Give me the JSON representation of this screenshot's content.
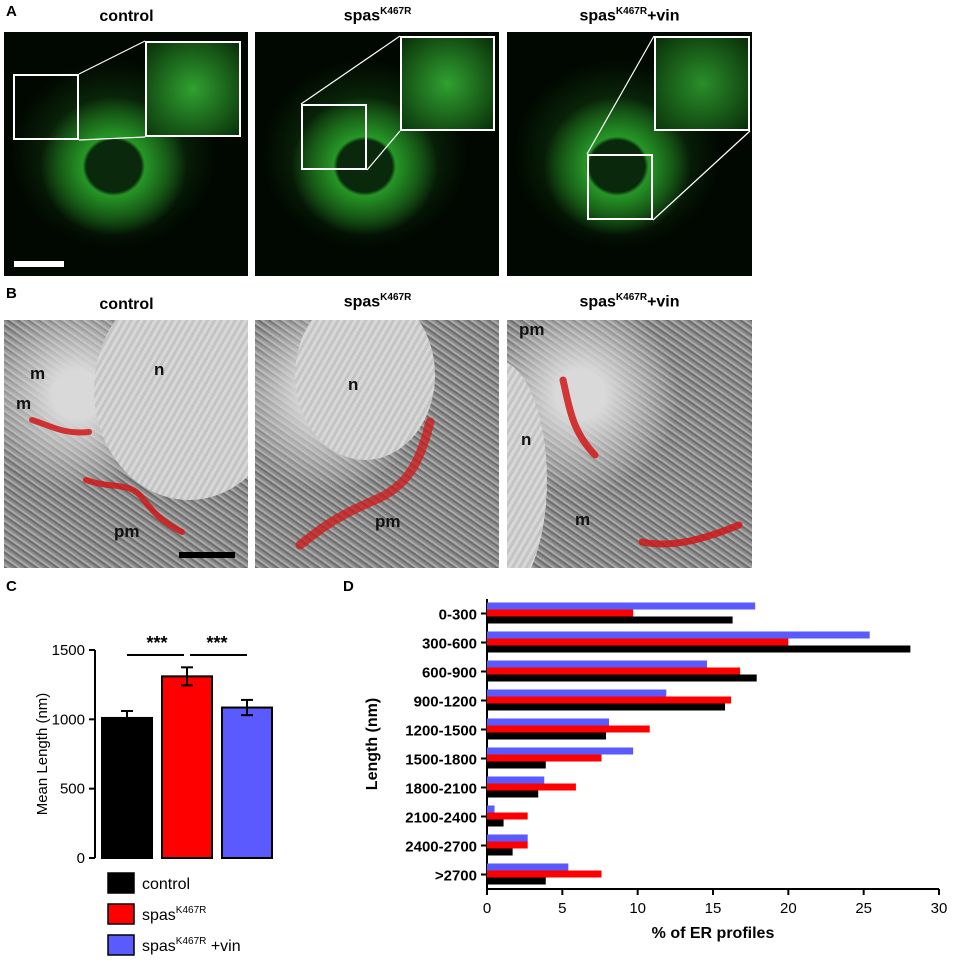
{
  "panels": {
    "A": {
      "label": "A",
      "titles": [
        "control",
        "spas",
        "spas"
      ],
      "sup": [
        "",
        "K467R",
        "K467R"
      ],
      "suffix": [
        "",
        "",
        "+vin"
      ]
    },
    "B": {
      "label": "B",
      "titles": [
        "control",
        "spas",
        "spas"
      ],
      "sup": [
        "",
        "K467R",
        "K467R"
      ],
      "suffix": [
        "",
        "",
        "+vin"
      ],
      "em_labels": {
        "control": [
          "m",
          "m",
          "n",
          "pm"
        ],
        "spas": [
          "n",
          "pm"
        ],
        "spasvin": [
          "pm",
          "n",
          "m"
        ]
      }
    },
    "C": {
      "label": "C"
    },
    "D": {
      "label": "D"
    }
  },
  "colors": {
    "control": "#000000",
    "spas": "#ff0000",
    "spasvin": "#5a5aff",
    "er_trace": "#d01818"
  },
  "chart_data": [
    {
      "type": "bar",
      "panel": "C",
      "categories": [
        "control",
        "spasK467R",
        "spasK467R +vin"
      ],
      "values": [
        1010,
        1310,
        1085
      ],
      "errors": [
        50,
        65,
        55
      ],
      "ylabel": "Mean Length (nm)",
      "ylim": [
        0,
        1500
      ],
      "yticks": [
        "0",
        "500",
        "1000",
        "1500"
      ],
      "significance": [
        "***",
        "***"
      ],
      "legend": [
        {
          "name": "control",
          "sup": ""
        },
        {
          "name": "spas",
          "sup": "K467R"
        },
        {
          "name": "spas",
          "sup": "K467R",
          "suffix": " +vin"
        }
      ]
    },
    {
      "type": "bar",
      "orientation": "horizontal",
      "panel": "D",
      "categories": [
        "0-300",
        "300-600",
        "600-900",
        "900-1200",
        "1200-1500",
        "1500-1800",
        "1800-2100",
        "2100-2400",
        "2400-2700",
        ">2700"
      ],
      "series": [
        {
          "key": "spasvin",
          "values": [
            17.8,
            25.4,
            14.6,
            11.9,
            8.1,
            9.7,
            3.8,
            0.5,
            2.7,
            5.4
          ]
        },
        {
          "key": "spas",
          "values": [
            9.7,
            20.0,
            16.8,
            16.2,
            10.8,
            7.6,
            5.9,
            2.7,
            2.7,
            7.6
          ]
        },
        {
          "key": "control",
          "values": [
            16.3,
            28.1,
            17.9,
            15.8,
            7.9,
            3.9,
            3.4,
            1.1,
            1.7,
            3.9
          ]
        }
      ],
      "xlabel": "% of ER profiles",
      "ylabel": "Length (nm)",
      "xlim": [
        0,
        30
      ],
      "xticks": [
        "0",
        "5",
        "10",
        "15",
        "20",
        "25",
        "30"
      ]
    }
  ]
}
